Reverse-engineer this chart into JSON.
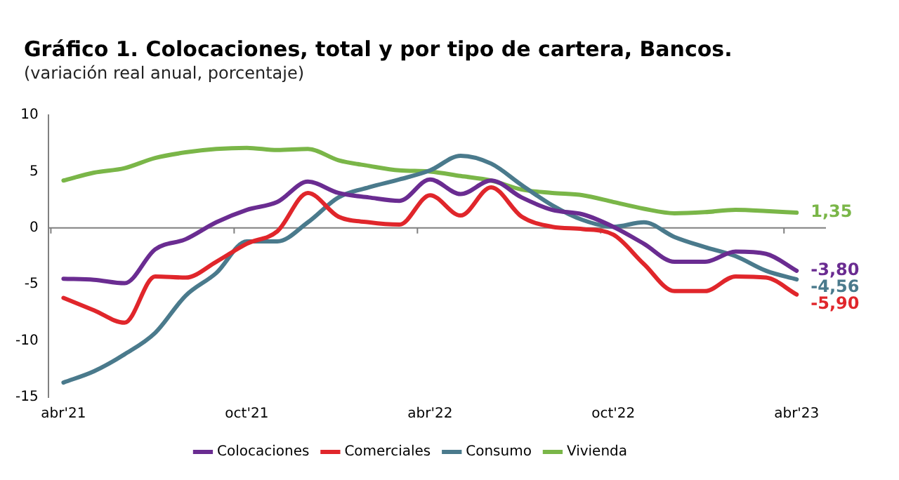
{
  "chart_data": {
    "type": "line",
    "title": "Gráfico 1. Colocaciones, total y por tipo de cartera, Bancos.",
    "subtitle": "(variación real anual, porcentaje)",
    "categories": [
      "abr'21",
      null,
      null,
      null,
      null,
      null,
      "oct'21",
      null,
      null,
      null,
      null,
      null,
      "abr'22",
      null,
      null,
      null,
      null,
      null,
      "oct'22",
      null,
      null,
      null,
      null,
      null,
      "abr'23"
    ],
    "series": [
      {
        "name": "Colocaciones",
        "color": "#6a2c91",
        "values": [
          -4.5,
          -4.6,
          -4.9,
          -1.9,
          -1.0,
          0.5,
          1.6,
          2.3,
          4.1,
          3.1,
          2.7,
          2.4,
          4.3,
          3.0,
          4.2,
          2.7,
          1.6,
          1.2,
          0.1,
          -1.4,
          -3.0,
          -3.0,
          -2.1,
          -2.3,
          -3.8
        ],
        "value_labels": [
          null,
          null,
          null,
          null,
          null,
          null,
          null,
          null,
          null,
          null,
          null,
          null,
          null,
          null,
          null,
          null,
          null,
          null,
          null,
          null,
          null,
          null,
          null,
          null,
          "-3,80"
        ]
      },
      {
        "name": "Comerciales",
        "color": "#e0262b",
        "values": [
          -6.2,
          -7.3,
          -8.4,
          -4.3,
          -4.4,
          -3.0,
          -1.4,
          -0.3,
          3.1,
          1.0,
          0.5,
          0.3,
          2.9,
          1.1,
          3.6,
          1.0,
          0.1,
          -0.1,
          -0.6,
          -3.2,
          -5.6,
          -5.6,
          -4.3,
          -4.4,
          -5.9
        ],
        "value_labels": [
          null,
          null,
          null,
          null,
          null,
          null,
          null,
          null,
          null,
          null,
          null,
          null,
          null,
          null,
          null,
          null,
          null,
          null,
          null,
          null,
          null,
          null,
          null,
          null,
          "-5,90"
        ]
      },
      {
        "name": "Consumo",
        "color": "#4a7a8c",
        "values": [
          -13.7,
          -12.7,
          -11.2,
          -9.3,
          -6.0,
          -4.0,
          -1.2,
          -1.2,
          0.5,
          2.7,
          3.6,
          4.3,
          5.1,
          6.4,
          5.7,
          3.8,
          2.0,
          0.7,
          0.1,
          0.5,
          -0.8,
          -1.7,
          -2.5,
          -3.8,
          -4.56
        ],
        "value_labels": [
          null,
          null,
          null,
          null,
          null,
          null,
          null,
          null,
          null,
          null,
          null,
          null,
          null,
          null,
          null,
          null,
          null,
          null,
          null,
          null,
          null,
          null,
          null,
          null,
          "-4,56"
        ]
      },
      {
        "name": "Vivienda",
        "color": "#7ab648",
        "values": [
          4.2,
          4.9,
          5.3,
          6.2,
          6.7,
          7.0,
          7.1,
          6.9,
          7.0,
          6.0,
          5.5,
          5.1,
          5.0,
          4.6,
          4.2,
          3.4,
          3.1,
          2.9,
          2.3,
          1.7,
          1.3,
          1.4,
          1.6,
          1.5,
          1.35
        ],
        "value_labels": [
          null,
          null,
          null,
          null,
          null,
          null,
          null,
          null,
          null,
          null,
          null,
          null,
          null,
          null,
          null,
          null,
          null,
          null,
          null,
          null,
          null,
          null,
          null,
          null,
          "1,35"
        ]
      }
    ],
    "ylim": [
      -15,
      10
    ],
    "yticks": [
      -15,
      -10,
      -5,
      0,
      5,
      10
    ],
    "ref_lines": [
      {
        "axis": "y",
        "value": 0,
        "color": "#808080"
      }
    ],
    "grid": false,
    "legend": "bottom",
    "marker": "none",
    "line_style": "solid"
  }
}
